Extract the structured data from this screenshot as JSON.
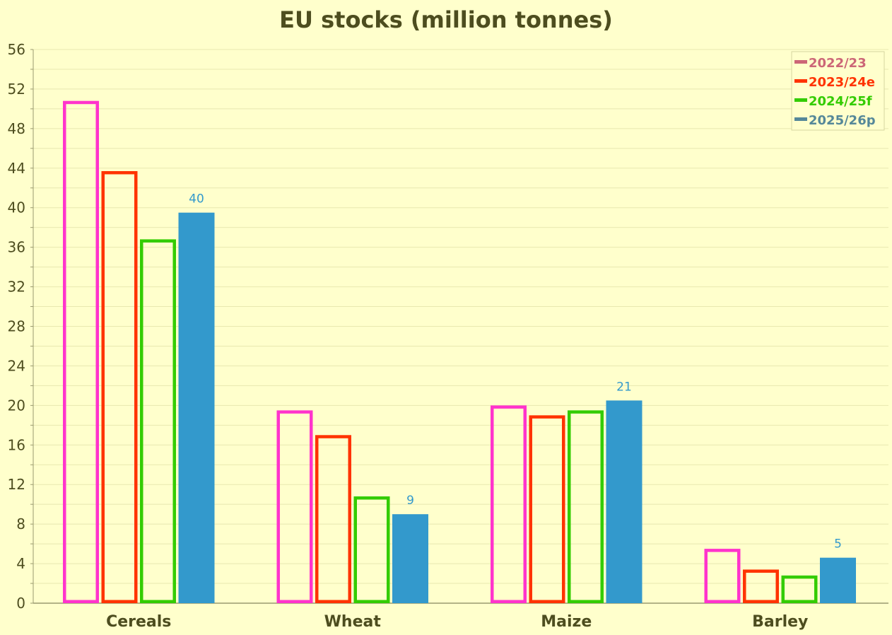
{
  "chart_data": {
    "type": "bar",
    "title": "EU stocks (million tonnes)",
    "xlabel": "",
    "ylabel": "",
    "categories": [
      "Cereals",
      "Wheat",
      "Maize",
      "Barley"
    ],
    "ylim": [
      0,
      56
    ],
    "yticks": [
      "0",
      "4",
      "8",
      "12",
      "16",
      "20",
      "24",
      "28",
      "32",
      "36",
      "40",
      "44",
      "48",
      "52",
      "56"
    ],
    "grid": true,
    "legend_position": "top-right",
    "series": [
      {
        "name": "2022/23",
        "values": [
          50.8,
          19.5,
          20.0,
          5.5
        ],
        "color": "#ff33cc",
        "legend_color": "#cc6677",
        "style": "outline"
      },
      {
        "name": "2023/24e",
        "values": [
          43.7,
          17.0,
          19.0,
          3.4
        ],
        "color": "#ff3300",
        "legend_color": "#ff3300",
        "style": "outline"
      },
      {
        "name": "2024/25f",
        "values": [
          36.8,
          10.8,
          19.5,
          2.8
        ],
        "color": "#33cc00",
        "legend_color": "#33cc00",
        "style": "outline"
      },
      {
        "name": "2025/26p",
        "values": [
          39.5,
          9.0,
          20.5,
          4.6
        ],
        "color": "#3399cc",
        "legend_color": "#558899",
        "style": "filled",
        "data_labels": [
          "40",
          "9",
          "21",
          "5"
        ]
      }
    ]
  }
}
